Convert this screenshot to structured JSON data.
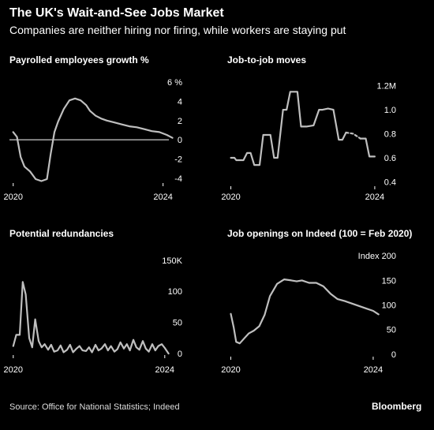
{
  "header": {
    "title": "The UK's Wait-and-See Jobs Market",
    "subtitle": "Companies are neither hiring nor firing, while workers are staying put"
  },
  "footer": {
    "source": "Source: Office for National Statistics; Indeed",
    "brand": "Bloomberg"
  },
  "colors": {
    "background": "#000000",
    "line": "#bfbfbf",
    "text": "#ffffff",
    "axis": "#ffffff"
  },
  "chart_data": [
    {
      "type": "line",
      "title": "Payrolled employees growth %",
      "x_tick_labels": [
        "2020",
        "2024"
      ],
      "y_tick_labels": [
        "6 %",
        "4",
        "2",
        "0",
        "-2",
        "-4"
      ],
      "y_ticks": [
        6,
        4,
        2,
        0,
        -2,
        -4
      ],
      "xlim": [
        2019.9,
        2024.45
      ],
      "ylim": [
        -5,
        6.5
      ],
      "zero_line": true,
      "series": [
        {
          "x": [
            2020.0,
            2020.1,
            2020.2,
            2020.3,
            2020.45,
            2020.6,
            2020.75,
            2020.9,
            2021.0,
            2021.1,
            2021.2,
            2021.35,
            2021.5,
            2021.65,
            2021.8,
            2021.95,
            2022.05,
            2022.2,
            2022.35,
            2022.5,
            2022.7,
            2022.9,
            2023.1,
            2023.3,
            2023.5,
            2023.7,
            2023.9,
            2024.1,
            2024.25
          ],
          "values": [
            0.8,
            0.3,
            -1.8,
            -2.8,
            -3.3,
            -4.1,
            -4.3,
            -4.1,
            -1.5,
            0.8,
            1.9,
            3.2,
            4.1,
            4.3,
            4.1,
            3.6,
            3.0,
            2.5,
            2.2,
            2.0,
            1.8,
            1.6,
            1.4,
            1.3,
            1.1,
            0.9,
            0.8,
            0.5,
            0.2
          ]
        }
      ]
    },
    {
      "type": "line",
      "title": "Job-to-job moves",
      "x_tick_labels": [
        "2020",
        "2024"
      ],
      "y_tick_labels": [
        "1.2M",
        "1.0",
        "0.8",
        "0.6",
        "0.4"
      ],
      "y_ticks": [
        1.2,
        1.0,
        0.8,
        0.6,
        0.4
      ],
      "xlim": [
        2019.9,
        2024.55
      ],
      "ylim": [
        0.35,
        1.27
      ],
      "series": [
        {
          "segments": [
            {
              "style": "solid",
              "x": [
                2020.0,
                2020.1,
                2020.15,
                2020.35,
                2020.45,
                2020.55,
                2020.65,
                2020.8,
                2020.9,
                2021.1,
                2021.2,
                2021.3,
                2021.45,
                2021.55,
                2021.65,
                2021.85,
                2021.95,
                2022.1,
                2022.3,
                2022.45,
                2022.55,
                2022.7,
                2022.85,
                2023.0,
                2023.1,
                2023.2
              ],
              "values": [
                0.6,
                0.6,
                0.58,
                0.58,
                0.64,
                0.64,
                0.54,
                0.54,
                0.79,
                0.79,
                0.6,
                0.6,
                1.0,
                1.0,
                1.15,
                1.15,
                0.86,
                0.86,
                0.87,
                1.0,
                1.0,
                1.01,
                1.0,
                0.75,
                0.75,
                0.81
              ]
            },
            {
              "style": "dashed",
              "x": [
                2023.2,
                2023.4,
                2023.6
              ],
              "values": [
                0.81,
                0.8,
                0.76
              ]
            },
            {
              "style": "solid",
              "x": [
                2023.6,
                2023.75,
                2023.85,
                2024.0
              ],
              "values": [
                0.76,
                0.76,
                0.61,
                0.61
              ]
            }
          ]
        }
      ]
    },
    {
      "type": "line",
      "title": "Potential redundancies",
      "x_tick_labels": [
        "2020",
        "2024"
      ],
      "y_tick_labels": [
        "150K",
        "100",
        "50",
        "0"
      ],
      "y_ticks": [
        150,
        100,
        50,
        0
      ],
      "xlim": [
        2019.9,
        2024.4
      ],
      "ylim": [
        -5,
        165
      ],
      "series": [
        {
          "x": [
            2020.0,
            2020.08,
            2020.17,
            2020.25,
            2020.33,
            2020.42,
            2020.5,
            2020.58,
            2020.67,
            2020.75,
            2020.83,
            2020.92,
            2021.0,
            2021.08,
            2021.17,
            2021.25,
            2021.33,
            2021.42,
            2021.5,
            2021.58,
            2021.67,
            2021.75,
            2021.83,
            2021.92,
            2022.0,
            2022.08,
            2022.17,
            2022.25,
            2022.33,
            2022.42,
            2022.5,
            2022.58,
            2022.67,
            2022.75,
            2022.83,
            2022.92,
            2023.0,
            2023.08,
            2023.17,
            2023.25,
            2023.33,
            2023.42,
            2023.5,
            2023.58,
            2023.67,
            2023.75,
            2023.83,
            2023.92,
            2024.0,
            2024.1
          ],
          "values": [
            12,
            30,
            30,
            115,
            95,
            25,
            10,
            55,
            20,
            10,
            15,
            6,
            14,
            3,
            5,
            13,
            2,
            6,
            14,
            2,
            8,
            12,
            5,
            4,
            10,
            2,
            14,
            5,
            8,
            15,
            5,
            12,
            3,
            7,
            18,
            8,
            15,
            5,
            22,
            10,
            6,
            20,
            8,
            3,
            15,
            5,
            12,
            15,
            9,
            0
          ]
        }
      ]
    },
    {
      "type": "line",
      "title": "Job openings on Indeed (100 = Feb 2020)",
      "x_tick_labels": [
        "2020",
        "2024"
      ],
      "y_tick_labels": [
        "Index 200",
        "150",
        "100",
        "50",
        "0"
      ],
      "y_ticks": [
        200,
        150,
        100,
        50,
        0
      ],
      "xlim": [
        2019.9,
        2024.6
      ],
      "ylim": [
        -5,
        210
      ],
      "series": [
        {
          "x": [
            2020.0,
            2020.08,
            2020.15,
            2020.25,
            2020.35,
            2020.5,
            2020.65,
            2020.8,
            2020.95,
            2021.1,
            2021.3,
            2021.5,
            2021.7,
            2021.85,
            2022.0,
            2022.2,
            2022.4,
            2022.6,
            2022.8,
            2023.0,
            2023.2,
            2023.4,
            2023.6,
            2023.8,
            2024.0,
            2024.15
          ],
          "values": [
            82,
            55,
            25,
            22,
            30,
            42,
            48,
            57,
            80,
            118,
            143,
            152,
            150,
            148,
            150,
            145,
            145,
            138,
            123,
            112,
            108,
            103,
            98,
            93,
            88,
            81
          ]
        }
      ]
    }
  ]
}
